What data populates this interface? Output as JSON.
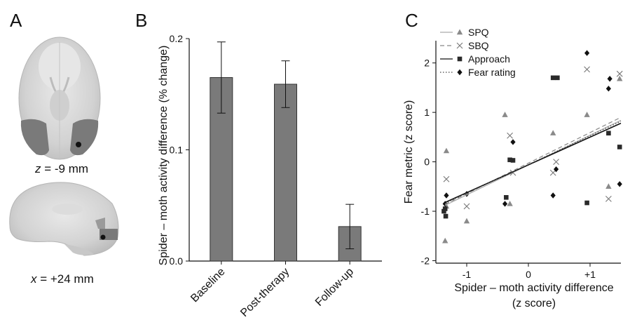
{
  "panels": {
    "a": {
      "letter": "A",
      "caption_axial_var": "z",
      "caption_axial_value": " = -9 mm",
      "caption_sagittal_var": "x",
      "caption_sagittal_value": " = +24 mm"
    },
    "b": {
      "letter": "B"
    },
    "c": {
      "letter": "C"
    }
  },
  "chart_data": [
    {
      "type": "bar",
      "categories": [
        "Baseline",
        "Post-therapy",
        "Follow-up"
      ],
      "values": [
        0.165,
        0.159,
        0.031
      ],
      "errors": [
        0.032,
        0.021,
        0.02
      ],
      "ylabel": "Spider – moth activity difference (% change)",
      "xlabel": "",
      "ylim": [
        0,
        0.2
      ],
      "yticks": [
        0.0,
        0.1,
        0.2
      ],
      "ytick_labels": [
        "0.0",
        "0.1",
        "0.2"
      ],
      "bar_color": "#7a7a7a",
      "grid": false
    },
    {
      "type": "scatter",
      "xlabel_line1": "Spider – moth activity difference",
      "xlabel_line2": "(z score)",
      "ylabel": "Fear metric (z score)",
      "xlim": [
        -1.5,
        1.5
      ],
      "ylim": [
        -2.05,
        2.45
      ],
      "xticks": [
        -1,
        0,
        1
      ],
      "xtick_labels": [
        "-1",
        "0",
        "+1"
      ],
      "yticks": [
        -2,
        -1,
        0,
        1,
        2
      ],
      "ytick_labels": [
        "-2",
        "-1",
        "0",
        "1",
        "2"
      ],
      "legend_position": "top-left",
      "grid": false,
      "series": [
        {
          "name": "SPQ",
          "marker": "triangle",
          "color": "#8a8a8a",
          "line_style": "solid",
          "line_color": "#aaaaaa",
          "fit": [
            [
              -1.35,
              -0.88
            ],
            [
              1.5,
              0.84
            ]
          ],
          "x": [
            -1.35,
            -1.33,
            -1.33,
            -1.0,
            -0.38,
            -0.3,
            0.4,
            0.95,
            1.3,
            1.48
          ],
          "y": [
            -1.6,
            -0.9,
            0.22,
            -1.2,
            0.95,
            -0.85,
            0.58,
            0.95,
            -0.5,
            1.68
          ]
        },
        {
          "name": "SBQ",
          "marker": "x",
          "color": "#777777",
          "line_style": "dashed",
          "line_color": "#888888",
          "fit": [
            [
              -1.35,
              -0.86
            ],
            [
              1.5,
              0.9
            ]
          ],
          "x": [
            -1.33,
            -1.0,
            -0.3,
            -0.25,
            0.4,
            0.45,
            0.95,
            1.3,
            1.48
          ],
          "y": [
            -0.35,
            -0.9,
            0.53,
            -0.22,
            -0.22,
            0.0,
            1.87,
            -0.75,
            1.78
          ]
        },
        {
          "name": "Approach",
          "marker": "square",
          "color": "#2a2a2a",
          "line_style": "solid",
          "line_color": "#111111",
          "fit": [
            [
              -1.35,
              -0.82
            ],
            [
              1.5,
              0.78
            ]
          ],
          "x": [
            -1.37,
            -1.34,
            -1.35,
            -0.36,
            -0.3,
            -0.25,
            0.4,
            0.47,
            0.95,
            1.3,
            1.48
          ],
          "y": [
            -1.0,
            -1.1,
            -0.95,
            -0.72,
            0.04,
            0.03,
            1.7,
            1.7,
            -0.83,
            0.58,
            0.3
          ]
        },
        {
          "name": "Fear rating",
          "marker": "diamond",
          "color": "#111111",
          "line_style": "dotted",
          "line_color": "#444444",
          "fit": [
            [
              -1.35,
              -0.84
            ],
            [
              1.5,
              0.82
            ]
          ],
          "x": [
            -1.35,
            -1.33,
            -1.0,
            -0.38,
            -0.25,
            0.4,
            0.45,
            0.95,
            1.3,
            1.32,
            1.48
          ],
          "y": [
            -0.85,
            -0.68,
            -0.65,
            -0.85,
            0.4,
            -0.68,
            -0.15,
            2.2,
            1.48,
            1.68,
            -0.45
          ]
        }
      ]
    }
  ]
}
